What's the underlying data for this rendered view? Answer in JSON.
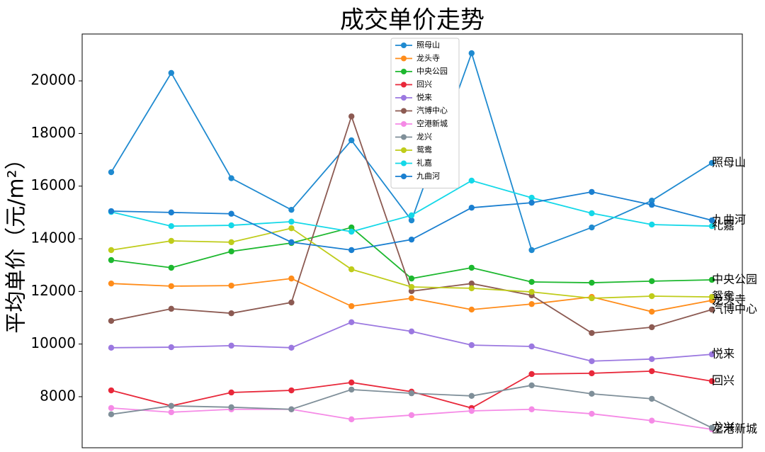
{
  "chart_data": {
    "type": "line",
    "title": "成交单价走势",
    "y_label": "平均单价（元/m²）",
    "categories": [
      null,
      null,
      null,
      null,
      null,
      null,
      null,
      null,
      null,
      null,
      null
    ],
    "ylim": [
      6060,
      21780
    ],
    "yticks": [
      8000,
      10000,
      12000,
      14000,
      16000,
      18000,
      20000
    ],
    "grid": false,
    "legend": "upper center",
    "end_labels": true,
    "series": [
      {
        "name": "照母山",
        "color": "#1f8ad0",
        "values": [
          16530,
          20300,
          16300,
          15100,
          17740,
          14700,
          21050,
          13570,
          14430,
          15450,
          16880
        ]
      },
      {
        "name": "龙头寺",
        "color": "#ff8c1a",
        "values": [
          12300,
          12200,
          12220,
          12490,
          11440,
          11740,
          11310,
          11520,
          11790,
          11230,
          11660
        ]
      },
      {
        "name": "中央公园",
        "color": "#1db82f",
        "values": [
          13190,
          12900,
          13520,
          13840,
          14430,
          12490,
          12900,
          12360,
          12330,
          12390,
          12440
        ]
      },
      {
        "name": "回兴",
        "color": "#e8283a",
        "values": [
          8240,
          7650,
          8160,
          8240,
          8540,
          8190,
          7570,
          8860,
          8890,
          8970,
          8590
        ]
      },
      {
        "name": "悦来",
        "color": "#9b78e0",
        "values": [
          9860,
          9880,
          9940,
          9860,
          10830,
          10480,
          9960,
          9910,
          9350,
          9430,
          9610
        ]
      },
      {
        "name": "汽博中心",
        "color": "#8c5a52",
        "values": [
          10880,
          11340,
          11170,
          11580,
          18650,
          12010,
          12300,
          11850,
          10420,
          10640,
          11310
        ]
      },
      {
        "name": "空港新城",
        "color": "#f58ae6",
        "values": [
          7570,
          7410,
          7520,
          7520,
          7140,
          7300,
          7460,
          7520,
          7350,
          7090,
          6760
        ]
      },
      {
        "name": "龙兴",
        "color": "#7f8f99",
        "values": [
          7330,
          7650,
          7600,
          7520,
          8270,
          8130,
          8030,
          8430,
          8110,
          7920,
          6820
        ]
      },
      {
        "name": "鸳鸯",
        "color": "#bfcc1a",
        "values": [
          13570,
          13920,
          13870,
          14400,
          12840,
          12170,
          12120,
          11980,
          11740,
          11820,
          11790
        ]
      },
      {
        "name": "礼嘉",
        "color": "#14d8e8",
        "values": [
          15020,
          14480,
          14510,
          14650,
          14270,
          14890,
          16210,
          15560,
          14970,
          14540,
          14480
        ]
      },
      {
        "name": "九曲河",
        "color": "#1a7fd0",
        "values": [
          15050,
          15000,
          14950,
          13870,
          13570,
          13970,
          15180,
          15370,
          15780,
          15290,
          14700
        ]
      }
    ]
  }
}
